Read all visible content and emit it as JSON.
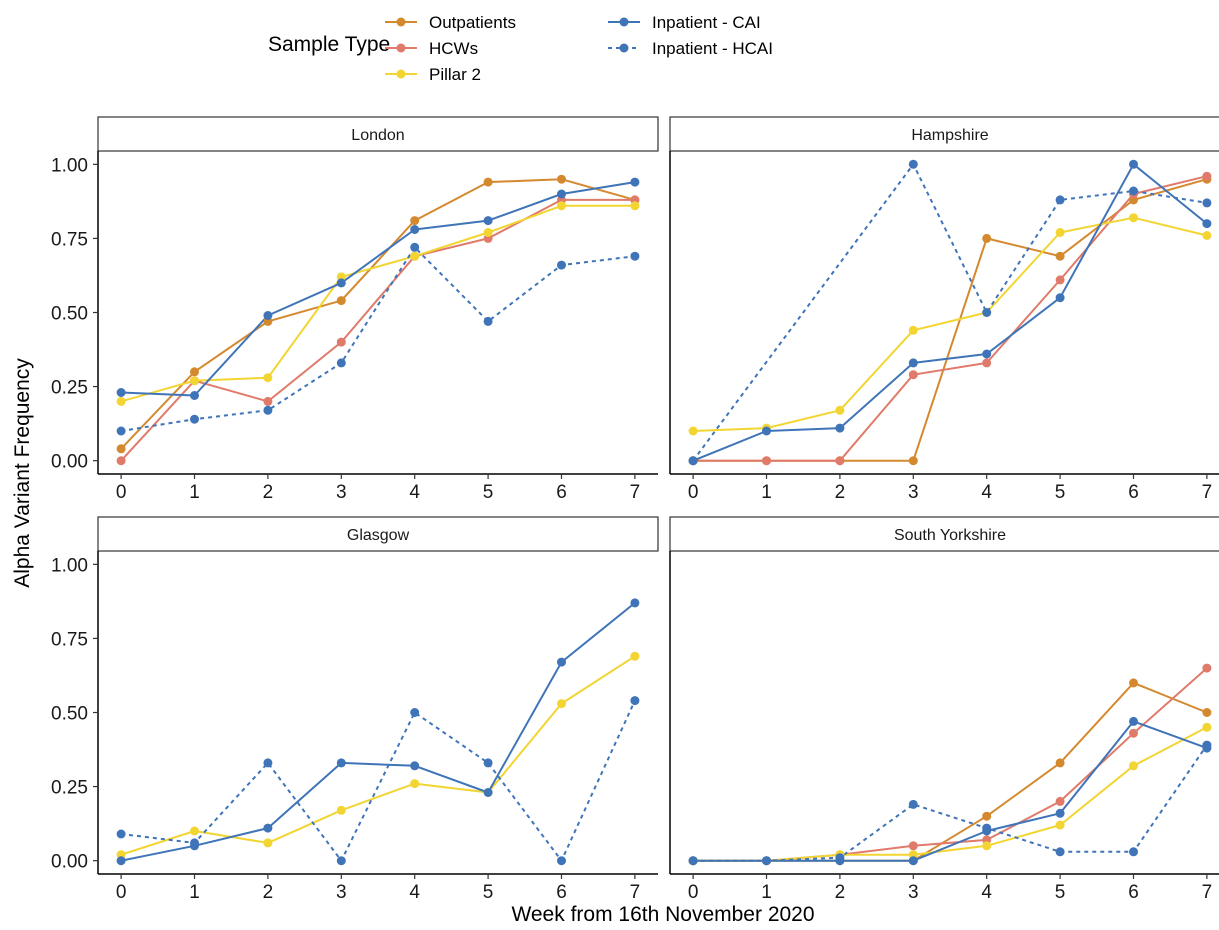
{
  "chart_data": {
    "type": "line",
    "xlabel": "Week from 16th November 2020",
    "ylabel": "Alpha Variant Frequency",
    "x": [
      0,
      1,
      2,
      3,
      4,
      5,
      6,
      7
    ],
    "xlim": [
      0,
      7
    ],
    "ylim": [
      0,
      1
    ],
    "x_ticks": [
      "0",
      "1",
      "2",
      "3",
      "4",
      "5",
      "6",
      "7"
    ],
    "y_ticks": [
      "0.00",
      "0.25",
      "0.50",
      "0.75",
      "1.00"
    ],
    "grid": false,
    "legend": {
      "title": "Sample Type",
      "placement": "top",
      "items": [
        {
          "label": "Outpatients",
          "color": "#D4892F",
          "dash": false
        },
        {
          "label": "HCWs",
          "color": "#E07A6A",
          "dash": false
        },
        {
          "label": "Pillar 2",
          "color": "#F2D531",
          "dash": false
        },
        {
          "label": "Inpatient - CAI",
          "color": "#3F74B8",
          "dash": false
        },
        {
          "label": "Inpatient - HCAI",
          "color": "#3F74B8",
          "dash": true
        }
      ]
    },
    "panels": [
      {
        "title": "London",
        "series": [
          {
            "name": "Outpatients",
            "x": [
              0,
              1,
              2,
              3,
              4,
              5,
              6,
              7
            ],
            "values": [
              0.04,
              0.3,
              0.47,
              0.54,
              0.81,
              0.94,
              0.95,
              0.88
            ]
          },
          {
            "name": "HCWs",
            "x": [
              0,
              1,
              2,
              3,
              4,
              5,
              6,
              7
            ],
            "values": [
              0.0,
              0.27,
              0.2,
              0.4,
              0.69,
              0.75,
              0.88,
              0.88
            ]
          },
          {
            "name": "Pillar 2",
            "x": [
              0,
              1,
              2,
              3,
              4,
              5,
              6,
              7
            ],
            "values": [
              0.2,
              0.27,
              0.28,
              0.62,
              0.69,
              0.77,
              0.86,
              0.86
            ]
          },
          {
            "name": "Inpatient - CAI",
            "x": [
              0,
              1,
              2,
              3,
              4,
              5,
              6,
              7
            ],
            "values": [
              0.23,
              0.22,
              0.49,
              0.6,
              0.78,
              0.81,
              0.9,
              0.94
            ]
          },
          {
            "name": "Inpatient - HCAI",
            "x": [
              0,
              1,
              2,
              3,
              4,
              5,
              6,
              7
            ],
            "values": [
              0.1,
              0.14,
              0.17,
              0.33,
              0.72,
              0.47,
              0.66,
              0.69
            ]
          }
        ]
      },
      {
        "title": "Hampshire",
        "series": [
          {
            "name": "Outpatients",
            "x": [
              0,
              1,
              2,
              3,
              4,
              5,
              6,
              7
            ],
            "values": [
              0.0,
              0.0,
              0.0,
              0.0,
              0.75,
              0.69,
              0.88,
              0.95
            ]
          },
          {
            "name": "HCWs",
            "x": [
              0,
              1,
              2,
              3,
              4,
              5,
              6,
              7
            ],
            "values": [
              0.0,
              0.0,
              0.0,
              0.29,
              0.33,
              0.61,
              0.9,
              0.96
            ]
          },
          {
            "name": "Pillar 2",
            "x": [
              0,
              1,
              2,
              3,
              4,
              5,
              6,
              7
            ],
            "values": [
              0.1,
              0.11,
              0.17,
              0.44,
              0.5,
              0.77,
              0.82,
              0.76
            ]
          },
          {
            "name": "Inpatient - CAI",
            "x": [
              0,
              1,
              2,
              3,
              4,
              5,
              6,
              7
            ],
            "values": [
              0.0,
              0.1,
              0.11,
              0.33,
              0.36,
              0.55,
              1.0,
              0.8
            ]
          },
          {
            "name": "Inpatient - HCAI",
            "x": [
              0,
              3,
              4,
              5,
              6,
              7
            ],
            "values": [
              0.0,
              1.0,
              0.5,
              0.88,
              0.91,
              0.87
            ]
          }
        ]
      },
      {
        "title": "Glasgow",
        "series": [
          {
            "name": "Pillar 2",
            "x": [
              0,
              1,
              2,
              3,
              4,
              5,
              6,
              7
            ],
            "values": [
              0.02,
              0.1,
              0.06,
              0.17,
              0.26,
              0.23,
              0.53,
              0.69
            ]
          },
          {
            "name": "Inpatient - CAI",
            "x": [
              0,
              1,
              2,
              3,
              4,
              5,
              6,
              7
            ],
            "values": [
              0.0,
              0.05,
              0.11,
              0.33,
              0.32,
              0.23,
              0.67,
              0.87
            ]
          },
          {
            "name": "Inpatient - HCAI",
            "x": [
              0,
              1,
              2,
              3,
              4,
              5,
              6,
              7
            ],
            "values": [
              0.09,
              0.06,
              0.33,
              0.0,
              0.5,
              0.33,
              0.0,
              0.54
            ]
          }
        ]
      },
      {
        "title": "South Yorkshire",
        "series": [
          {
            "name": "Outpatients",
            "x": [
              0,
              1,
              2,
              3,
              4,
              5,
              6,
              7
            ],
            "values": [
              0.0,
              0.0,
              0.0,
              0.0,
              0.15,
              0.33,
              0.6,
              0.5
            ]
          },
          {
            "name": "HCWs",
            "x": [
              0,
              1,
              2,
              3,
              4,
              5,
              6,
              7
            ],
            "values": [
              0.0,
              0.0,
              0.02,
              0.05,
              0.07,
              0.2,
              0.43,
              0.65
            ]
          },
          {
            "name": "Pillar 2",
            "x": [
              0,
              1,
              2,
              3,
              4,
              5,
              6,
              7
            ],
            "values": [
              0.0,
              0.0,
              0.02,
              0.02,
              0.05,
              0.12,
              0.32,
              0.45
            ]
          },
          {
            "name": "Inpatient - CAI",
            "x": [
              0,
              1,
              2,
              3,
              4,
              5,
              6,
              7
            ],
            "values": [
              0.0,
              0.0,
              0.0,
              0.0,
              0.1,
              0.16,
              0.47,
              0.38
            ]
          },
          {
            "name": "Inpatient - HCAI",
            "x": [
              0,
              1,
              2,
              3,
              4,
              5,
              6,
              7
            ],
            "values": [
              0.0,
              0.0,
              0.01,
              0.19,
              0.11,
              0.03,
              0.03,
              0.39
            ]
          }
        ]
      }
    ]
  }
}
